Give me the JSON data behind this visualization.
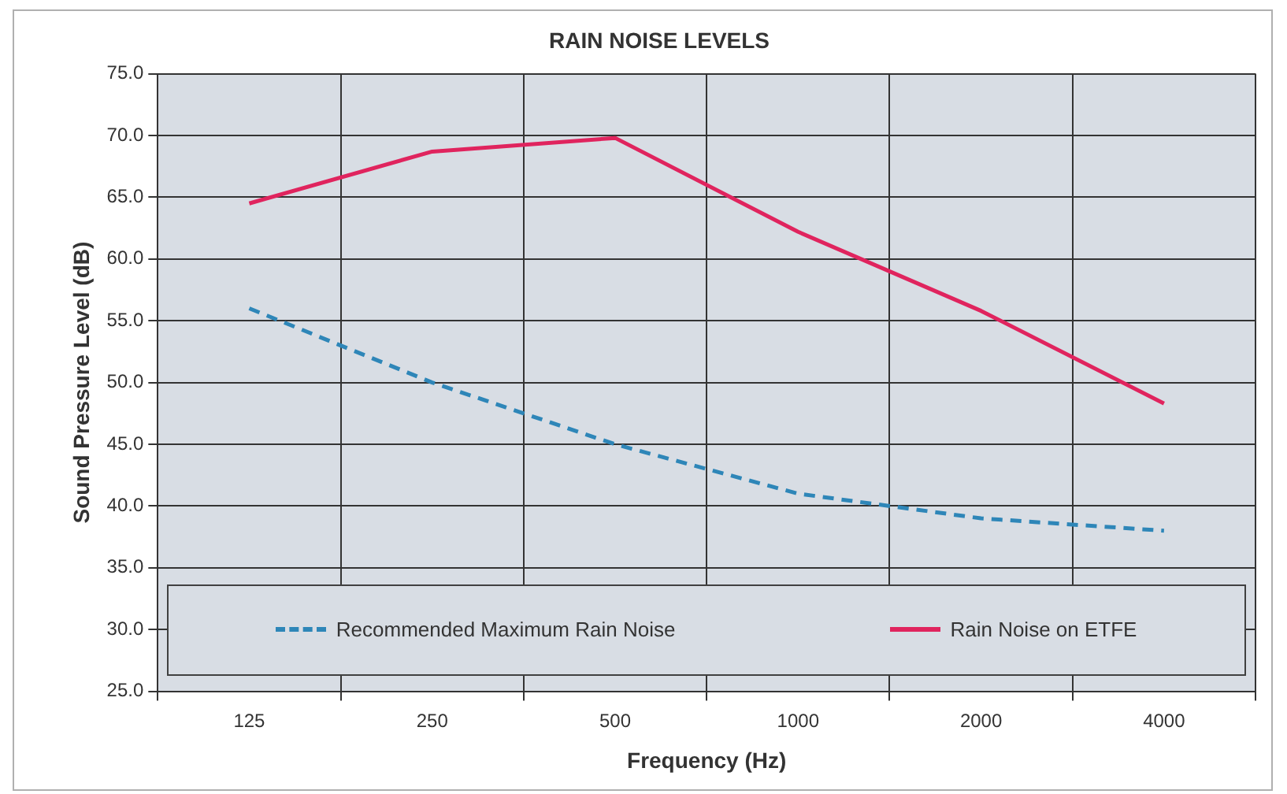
{
  "chart_data": {
    "type": "line",
    "title": "RAIN NOISE LEVELS",
    "xlabel": "Frequency (Hz)",
    "ylabel": "Sound Pressure Level (dB)",
    "categories": [
      "125",
      "250",
      "500",
      "1000",
      "2000",
      "4000"
    ],
    "series": [
      {
        "name": "Recommended Maximum Rain Noise",
        "color": "#2e86b8",
        "line_style": "dashed",
        "values": [
          56.0,
          50.0,
          45.0,
          41.0,
          39.0,
          38.0
        ]
      },
      {
        "name": "Rain Noise on ETFE",
        "color": "#e0245e",
        "line_style": "solid",
        "values": [
          64.5,
          68.7,
          69.8,
          62.2,
          55.8,
          48.3
        ]
      }
    ],
    "ylim": [
      25,
      75
    ],
    "yticks": [
      {
        "value": 25,
        "label": "25.0"
      },
      {
        "value": 30,
        "label": "30.0"
      },
      {
        "value": 35,
        "label": "35.0"
      },
      {
        "value": 40,
        "label": "40.0"
      },
      {
        "value": 45,
        "label": "45.0"
      },
      {
        "value": 50,
        "label": "50.0"
      },
      {
        "value": 55,
        "label": "55.0"
      },
      {
        "value": 60,
        "label": "60.0"
      },
      {
        "value": 65,
        "label": "65.0"
      },
      {
        "value": 70,
        "label": "70.0"
      },
      {
        "value": 75,
        "label": "75.0"
      }
    ],
    "grid": true,
    "legend": "bottom",
    "marker": "none"
  }
}
